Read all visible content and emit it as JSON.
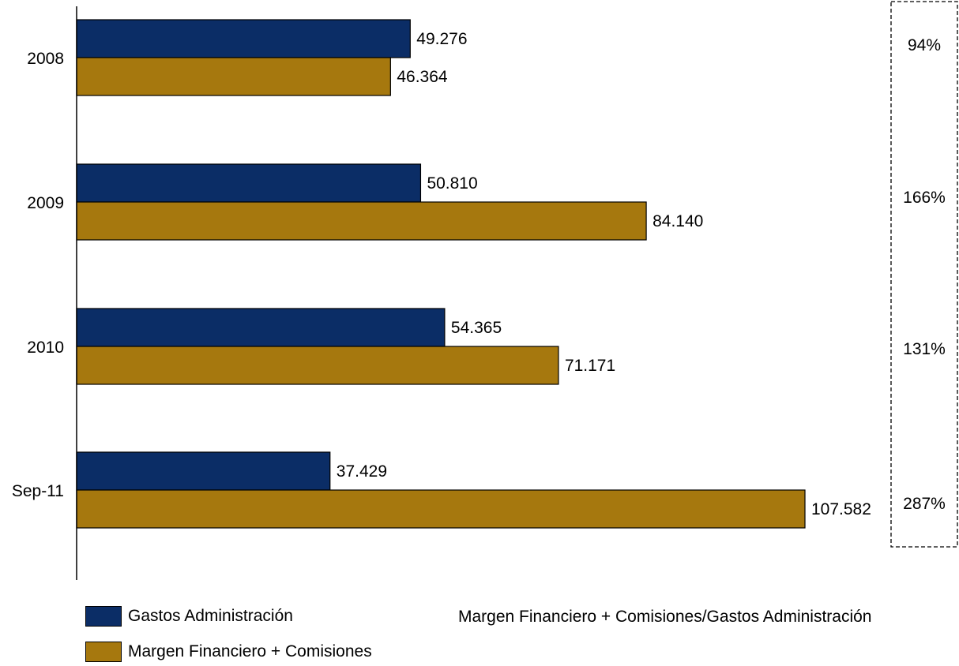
{
  "chart_data": {
    "type": "bar",
    "orientation": "horizontal",
    "categories": [
      "2008",
      "2009",
      "2010",
      "Sep-11"
    ],
    "series": [
      {
        "name": "Gastos Administración",
        "color": "#0b2d66",
        "values": [
          49276,
          50810,
          54365,
          37429
        ],
        "labels": [
          "49.276",
          "50.810",
          "54.365",
          "37.429"
        ]
      },
      {
        "name": "Margen Financiero + Comisiones",
        "color": "#a6780e",
        "values": [
          46364,
          84140,
          71171,
          107582
        ],
        "labels": [
          "46.364",
          "84.140",
          "71.171",
          "107.582"
        ]
      }
    ],
    "ratio": {
      "name": "Margen Financiero + Comisiones/Gastos Administración",
      "values": [
        "94%",
        "166%",
        "131%",
        "287%"
      ]
    },
    "xlim": [
      0,
      111000
    ],
    "grid": false,
    "legend_position": "bottom"
  }
}
